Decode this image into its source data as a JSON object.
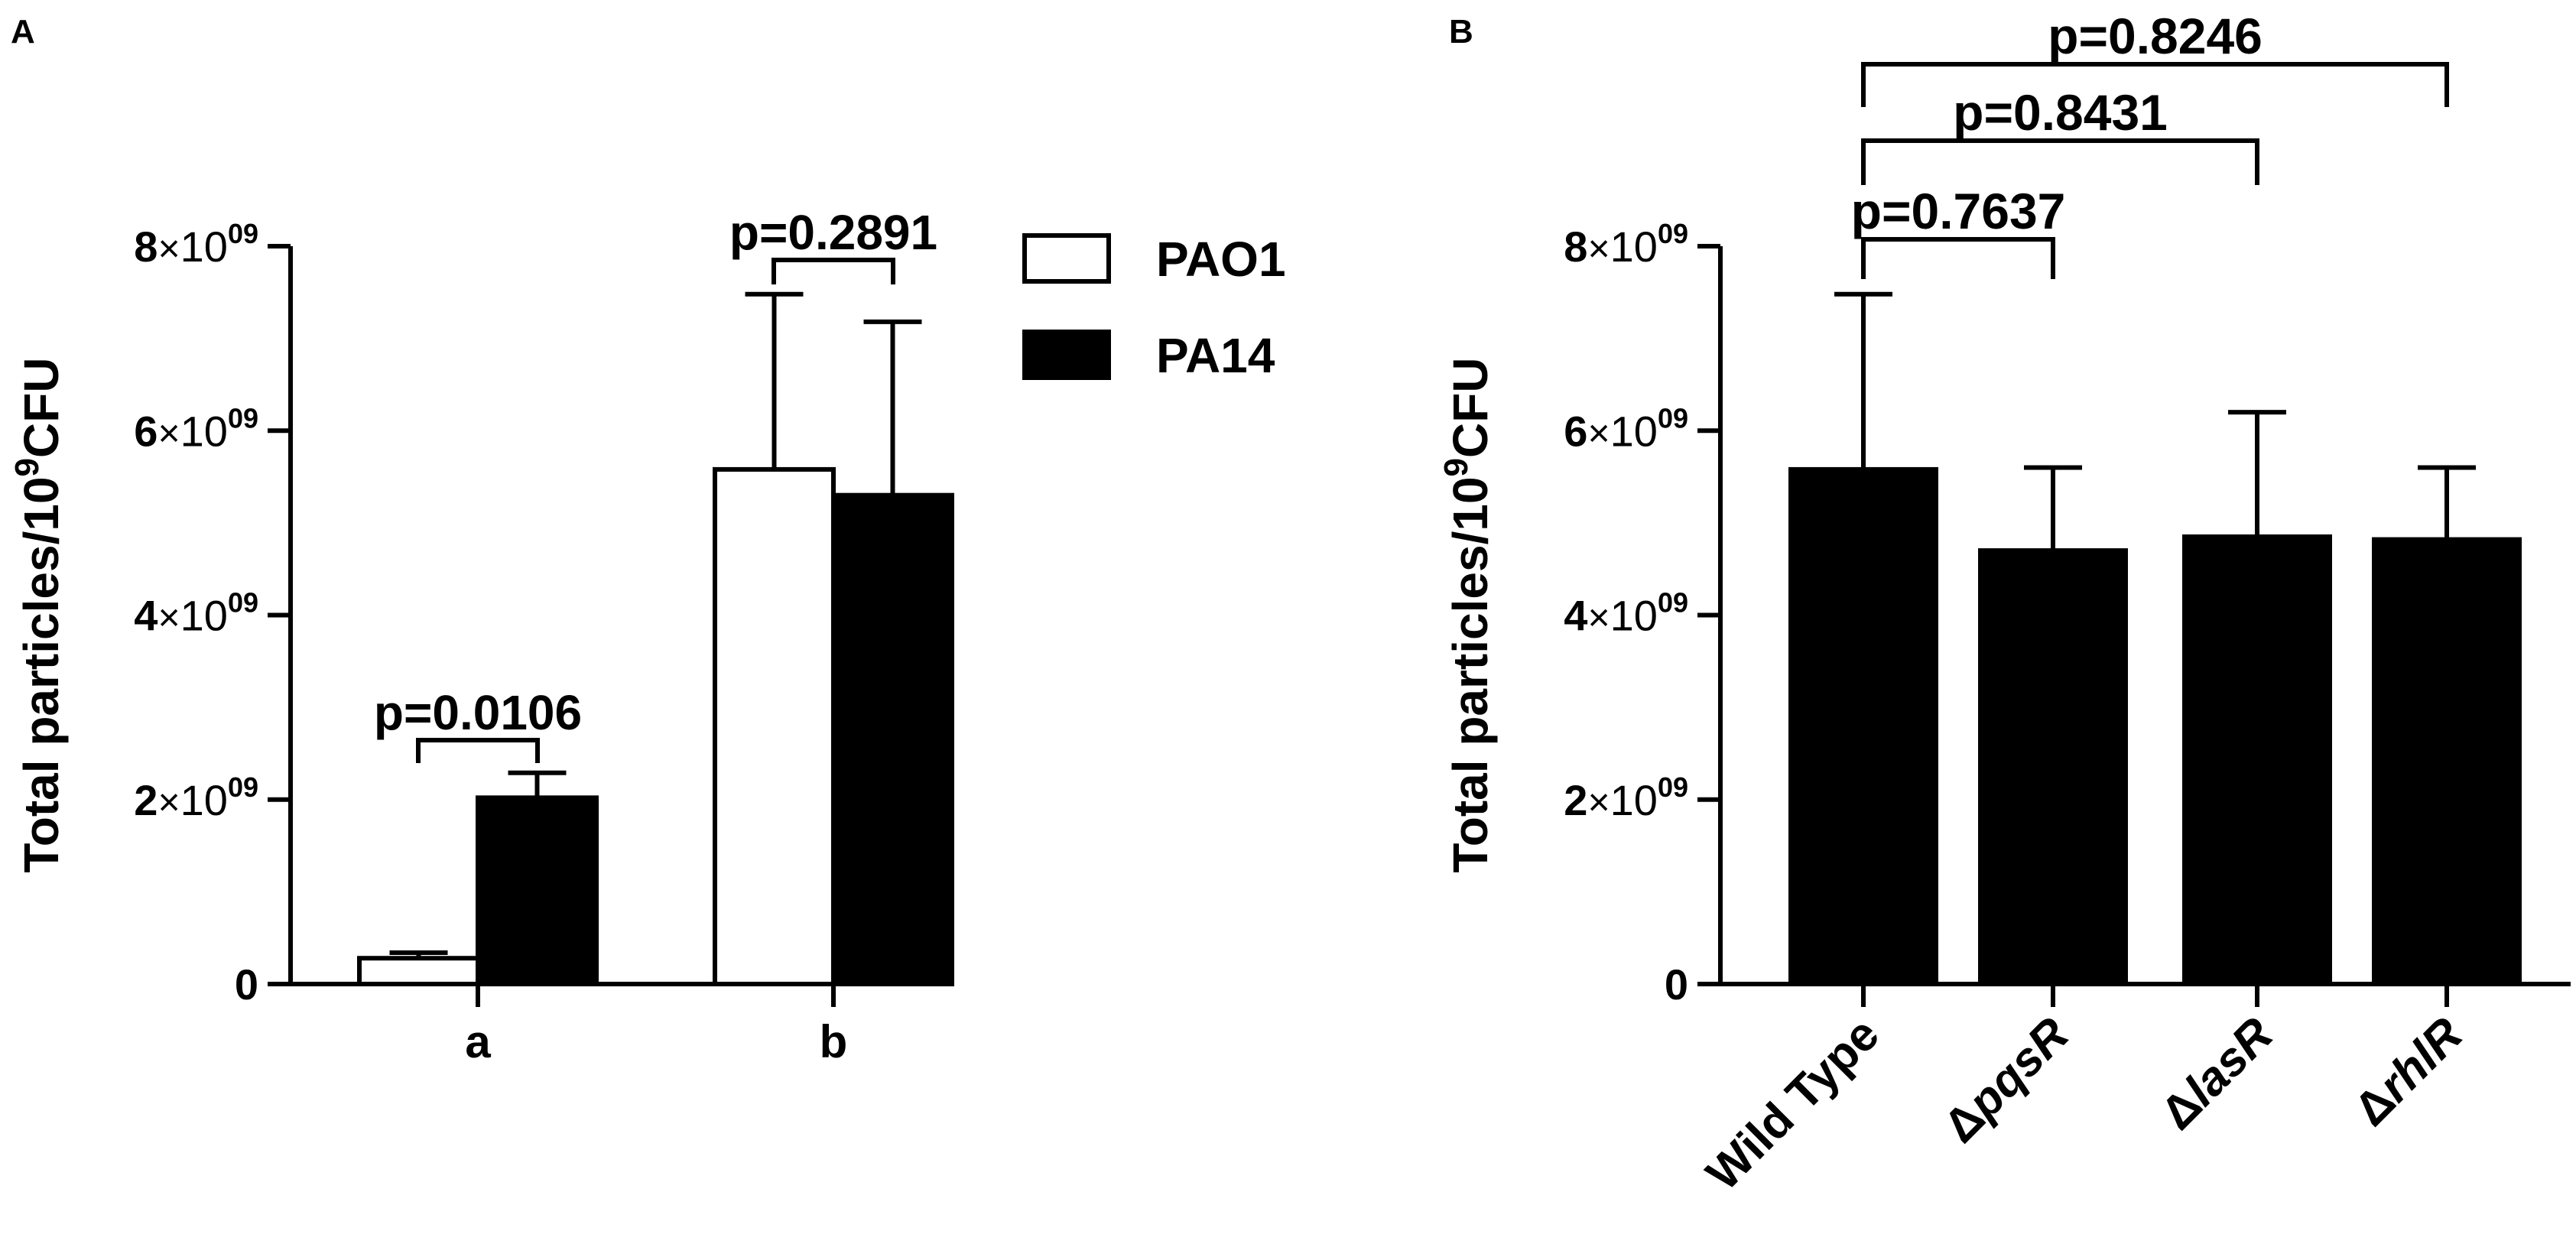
{
  "chart_data": [
    {
      "panel_label": "A",
      "type": "bar",
      "ylabel": "Total particles/10",
      "ylabel_sup": "9",
      "ylabel_tail": "CFU",
      "ylim": [
        0,
        8000000000
      ],
      "yticks": [
        {
          "value": 0,
          "mantissa": "0",
          "times": "",
          "base": "",
          "exp": ""
        },
        {
          "value": 2000000000,
          "mantissa": "2",
          "times": "×",
          "base": "10",
          "exp": "09"
        },
        {
          "value": 4000000000,
          "mantissa": "4",
          "times": "×",
          "base": "10",
          "exp": "09"
        },
        {
          "value": 6000000000,
          "mantissa": "6",
          "times": "×",
          "base": "10",
          "exp": "09"
        },
        {
          "value": 8000000000,
          "mantissa": "8",
          "times": "×",
          "base": "10",
          "exp": "09"
        }
      ],
      "categories": [
        "a",
        "b"
      ],
      "series": [
        {
          "name": "PAO1",
          "fill": "#ffffff",
          "values": [
            280000000,
            5580000000
          ],
          "errors": [
            60000000,
            1900000000
          ]
        },
        {
          "name": "PA14",
          "fill": "#000000",
          "values": [
            2020000000,
            5300000000
          ],
          "errors": [
            270000000,
            1880000000
          ]
        }
      ],
      "legend": {
        "position": "top-right"
      },
      "comparisons": [
        {
          "category_index": 0,
          "label": "p=0.0106"
        },
        {
          "category_index": 1,
          "label": "p=0.2891"
        }
      ]
    },
    {
      "panel_label": "B",
      "type": "bar",
      "ylabel": "Total particles/10",
      "ylabel_sup": "9",
      "ylabel_tail": "CFU",
      "ylim": [
        0,
        8000000000
      ],
      "yticks": [
        {
          "value": 0,
          "mantissa": "0",
          "times": "",
          "base": "",
          "exp": ""
        },
        {
          "value": 2000000000,
          "mantissa": "2",
          "times": "×",
          "base": "10",
          "exp": "09"
        },
        {
          "value": 4000000000,
          "mantissa": "4",
          "times": "×",
          "base": "10",
          "exp": "09"
        },
        {
          "value": 6000000000,
          "mantissa": "6",
          "times": "×",
          "base": "10",
          "exp": "09"
        },
        {
          "value": 8000000000,
          "mantissa": "8",
          "times": "×",
          "base": "10",
          "exp": "09"
        }
      ],
      "categories": [
        {
          "prefix": "",
          "name": "Wild Type",
          "italic": false
        },
        {
          "prefix": "Δ",
          "name": "pqsR",
          "italic": true
        },
        {
          "prefix": "Δ",
          "name": "lasR",
          "italic": true
        },
        {
          "prefix": "Δ",
          "name": "rhlR",
          "italic": true
        }
      ],
      "fill": "#000000",
      "values": [
        5580000000,
        4700000000,
        4850000000,
        4820000000
      ],
      "errors": [
        1900000000,
        900000000,
        1350000000,
        780000000
      ],
      "comparisons": [
        {
          "from": 0,
          "to": 1,
          "label": "p=0.7637"
        },
        {
          "from": 0,
          "to": 2,
          "label": "p=0.8431"
        },
        {
          "from": 0,
          "to": 3,
          "label": "p=0.8246"
        }
      ]
    }
  ]
}
